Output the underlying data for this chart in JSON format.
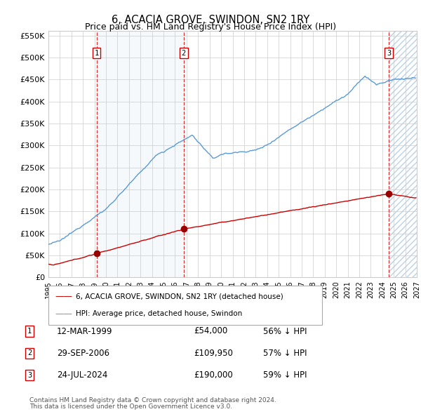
{
  "title": "6, ACACIA GROVE, SWINDON, SN2 1RY",
  "subtitle": "Price paid vs. HM Land Registry's House Price Index (HPI)",
  "legend_line1": "6, ACACIA GROVE, SWINDON, SN2 1RY (detached house)",
  "legend_line2": "HPI: Average price, detached house, Swindon",
  "footer1": "Contains HM Land Registry data © Crown copyright and database right 2024.",
  "footer2": "This data is licensed under the Open Government Licence v3.0.",
  "transactions": [
    {
      "num": 1,
      "date": "12-MAR-1999",
      "price": 54000,
      "year": 1999.19,
      "pct": "56% ↓ HPI"
    },
    {
      "num": 2,
      "date": "29-SEP-2006",
      "price": 109950,
      "year": 2006.75,
      "pct": "57% ↓ HPI"
    },
    {
      "num": 3,
      "date": "24-JUL-2024",
      "price": 190000,
      "year": 2024.56,
      "pct": "59% ↓ HPI"
    }
  ],
  "hpi_color": "#5b9bd5",
  "price_color": "#cc0000",
  "marker_color": "#990000",
  "vline_color": "#cc0000",
  "shade_color": "#dae8f5",
  "xmin": 1995,
  "xmax": 2027,
  "ymin": 0,
  "ymax": 560000,
  "yticks": [
    0,
    50000,
    100000,
    150000,
    200000,
    250000,
    300000,
    350000,
    400000,
    450000,
    500000,
    550000
  ]
}
